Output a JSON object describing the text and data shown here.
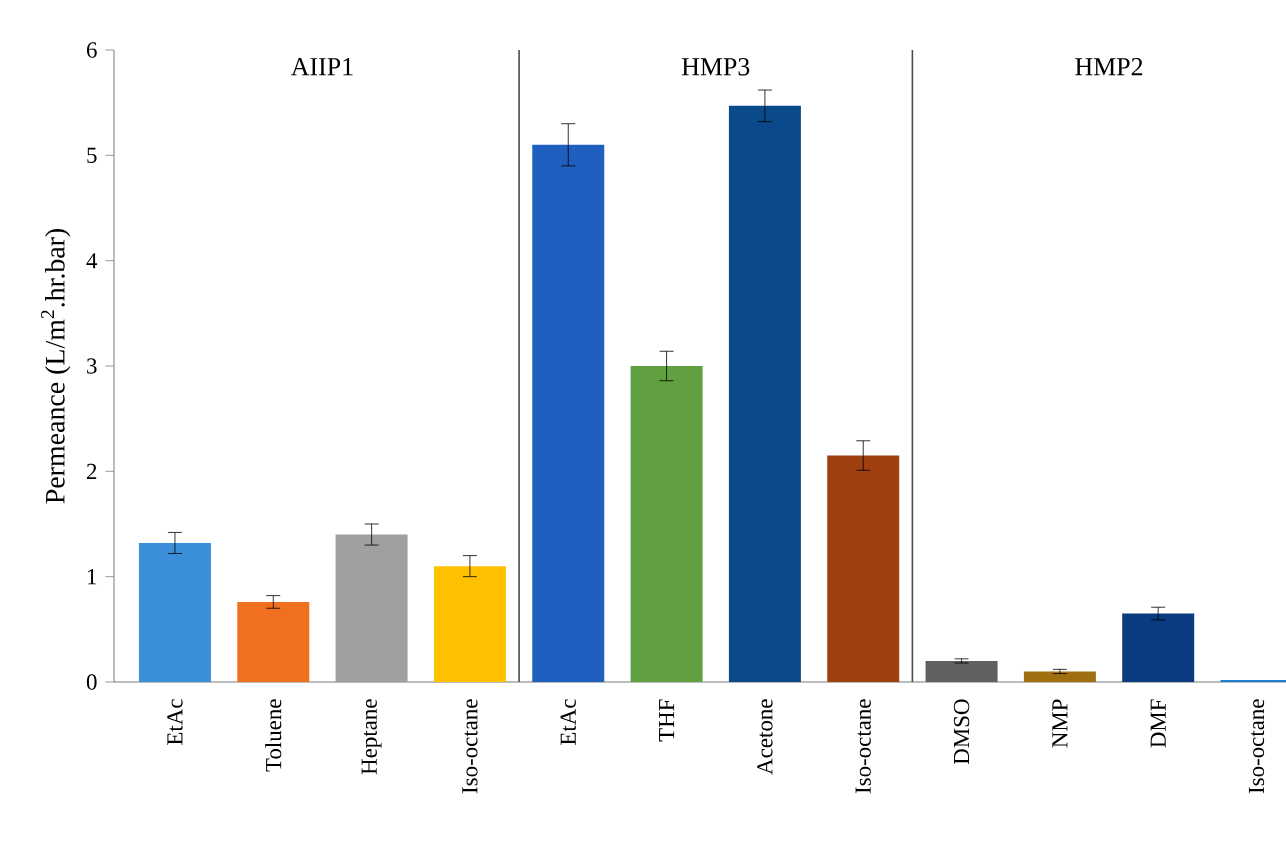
{
  "chart_data": {
    "type": "bar",
    "ylabel": "Permeance (L/m$^{2}$.hr.bar)",
    "categories": [
      "EtAc",
      "Toluene",
      "Heptane",
      "Iso-octane",
      "EtAc",
      "THF",
      "Acetone",
      "Iso-octane",
      "DMSO",
      "NMP",
      "DMF",
      "Iso-octane"
    ],
    "values": [
      1.32,
      0.76,
      1.4,
      1.1,
      5.1,
      3.0,
      5.47,
      2.15,
      0.2,
      0.1,
      0.65,
      0.02
    ],
    "errors": [
      0.1,
      0.06,
      0.1,
      0.1,
      0.2,
      0.14,
      0.15,
      0.14,
      0.02,
      0.02,
      0.06,
      null
    ],
    "colors": [
      "#3a8fd8",
      "#f07020",
      "#a0a0a0",
      "#ffc000",
      "#1f5fc0",
      "#60a040",
      "#0a4a8a",
      "#a04010",
      "#606060",
      "#a07010",
      "#0a3a80",
      "#2080d0"
    ],
    "ylim": [
      0,
      6
    ],
    "yticks": [
      0,
      1,
      2,
      3,
      4,
      5,
      6
    ],
    "annotations": [
      "AIIP1",
      "HMP3",
      "HMP2"
    ]
  }
}
